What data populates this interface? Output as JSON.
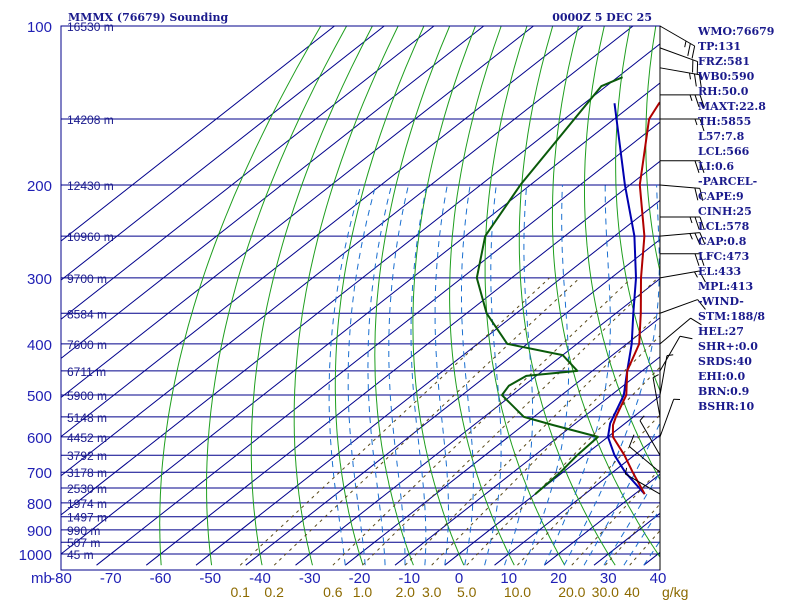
{
  "header": {
    "station_title": "MMMX (76679) Sounding",
    "time_label": "0000Z  5 DEC 25"
  },
  "indices": [
    "WMO:76679",
    "TP:131",
    "FRZ:581",
    "WB0:590",
    "RH:50.0",
    "MAXT:22.8",
    "TH:5855",
    "L57:7.8",
    "LCL:566",
    "LI:0.6",
    "-PARCEL-",
    "CAPE:9",
    "CINH:25",
    "LCL:578",
    "CAP:0.8",
    "LFC:473",
    "EL:433",
    "MPL:413",
    "-WIND-",
    "STM:188/8",
    "HEL:27",
    "SHR+:0.0",
    "SRDS:40",
    "EHI:0.0",
    "BRN:0.9",
    "BSHR:10"
  ],
  "colors": {
    "grid": "#00008b",
    "isotherm": "#00008b",
    "dry_adiabat": "#1e9e1e",
    "moist_adiabat": "#1a6fd0",
    "mixing_ratio": "#5a4a1a",
    "temperature": "#b00000",
    "dewpoint": "#0a5a0a",
    "parcel": "#0000b0",
    "axis_text": "#1f1fb4",
    "mixing_text": "#8c6a00",
    "wind": "#000000"
  },
  "chart_data": {
    "type": "skew-t",
    "pressure_axis_label": "mb",
    "pressure_ticks": [
      100,
      200,
      300,
      400,
      500,
      600,
      700,
      800,
      900,
      1000
    ],
    "pressure_range": [
      1050,
      100
    ],
    "temperature_ticks": [
      -80,
      -70,
      -60,
      -50,
      -40,
      -30,
      -20,
      -10,
      0,
      10,
      20,
      30,
      40
    ],
    "temperature_range": [
      -80,
      42
    ],
    "mixing_ratio_labels": [
      "0.1",
      "0.2",
      "0.6",
      "1.0",
      "2.0",
      "3.0",
      "5.0",
      "10.0",
      "20.0",
      "30.0",
      "40"
    ],
    "mixing_ratio_values": [
      0.1,
      0.2,
      0.6,
      1.0,
      2.0,
      3.0,
      5.0,
      10.0,
      20.0,
      30.0,
      40
    ],
    "mixing_ratio_unit": "g/kg",
    "height_labels": [
      {
        "p": 100,
        "label": "16530 m"
      },
      {
        "p": 150,
        "label": "14208 m"
      },
      {
        "p": 200,
        "label": "12430 m"
      },
      {
        "p": 250,
        "label": "10960 m"
      },
      {
        "p": 300,
        "label": "9700 m"
      },
      {
        "p": 350,
        "label": "8584 m"
      },
      {
        "p": 400,
        "label": "7600 m"
      },
      {
        "p": 450,
        "label": "6711 m"
      },
      {
        "p": 500,
        "label": "5900 m"
      },
      {
        "p": 550,
        "label": "5148 m"
      },
      {
        "p": 600,
        "label": "4452 m"
      },
      {
        "p": 650,
        "label": "3792 m"
      },
      {
        "p": 700,
        "label": "3178 m"
      },
      {
        "p": 750,
        "label": "2530 m"
      },
      {
        "p": 800,
        "label": "1974 m"
      },
      {
        "p": 850,
        "label": "1497 m"
      },
      {
        "p": 900,
        "label": "990 m"
      },
      {
        "p": 950,
        "label": "507 m"
      },
      {
        "p": 1000,
        "label": "45 m"
      }
    ],
    "temperature_profile": [
      {
        "p": 770,
        "t": 22.0
      },
      {
        "p": 700,
        "t": 14.0
      },
      {
        "p": 650,
        "t": 8.0
      },
      {
        "p": 600,
        "t": 1.0
      },
      {
        "p": 570,
        "t": -2.0
      },
      {
        "p": 550,
        "t": -3.5
      },
      {
        "p": 500,
        "t": -7.0
      },
      {
        "p": 450,
        "t": -13.0
      },
      {
        "p": 400,
        "t": -17.5
      },
      {
        "p": 350,
        "t": -25.0
      },
      {
        "p": 300,
        "t": -34.0
      },
      {
        "p": 250,
        "t": -44.0
      },
      {
        "p": 200,
        "t": -58.0
      },
      {
        "p": 150,
        "t": -73.0
      },
      {
        "p": 140,
        "t": -75.0
      },
      {
        "p": 120,
        "t": -75.0
      },
      {
        "p": 100,
        "t": -80.0
      }
    ],
    "dewpoint_profile": [
      {
        "p": 770,
        "td": 0.0
      },
      {
        "p": 700,
        "td": -0.5
      },
      {
        "p": 650,
        "td": -1.5
      },
      {
        "p": 600,
        "td": -2.0
      },
      {
        "p": 570,
        "td": -14.0
      },
      {
        "p": 550,
        "td": -22.0
      },
      {
        "p": 500,
        "td": -32.0
      },
      {
        "p": 480,
        "td": -33.0
      },
      {
        "p": 460,
        "td": -32.0
      },
      {
        "p": 450,
        "td": -23.0
      },
      {
        "p": 420,
        "td": -30.0
      },
      {
        "p": 400,
        "td": -44.0
      },
      {
        "p": 350,
        "td": -56.0
      },
      {
        "p": 300,
        "td": -67.0
      },
      {
        "p": 250,
        "td": -76.0
      },
      {
        "p": 200,
        "td": -82.0
      },
      {
        "p": 150,
        "td": -88.0
      },
      {
        "p": 130,
        "td": -91.0
      },
      {
        "p": 125,
        "td": -89.0
      }
    ],
    "parcel_profile": [
      {
        "p": 770,
        "t": 22.0
      },
      {
        "p": 700,
        "t": 12.5
      },
      {
        "p": 650,
        "t": 6.0
      },
      {
        "p": 600,
        "t": 0.0
      },
      {
        "p": 566,
        "t": -3.0
      },
      {
        "p": 500,
        "t": -7.5
      },
      {
        "p": 450,
        "t": -13.0
      },
      {
        "p": 400,
        "t": -19.0
      },
      {
        "p": 350,
        "t": -26.5
      },
      {
        "p": 300,
        "t": -35.0
      },
      {
        "p": 250,
        "t": -46.0
      },
      {
        "p": 200,
        "t": -61.0
      },
      {
        "p": 140,
        "t": -84.0
      }
    ],
    "wind_barbs": [
      {
        "p": 100,
        "dir": 300,
        "spd": 25
      },
      {
        "p": 110,
        "dir": 290,
        "spd": 20
      },
      {
        "p": 120,
        "dir": 280,
        "spd": 25
      },
      {
        "p": 135,
        "dir": 270,
        "spd": 25
      },
      {
        "p": 150,
        "dir": 270,
        "spd": 15
      },
      {
        "p": 180,
        "dir": 270,
        "spd": 20
      },
      {
        "p": 200,
        "dir": 275,
        "spd": 20
      },
      {
        "p": 230,
        "dir": 270,
        "spd": 25
      },
      {
        "p": 250,
        "dir": 265,
        "spd": 25
      },
      {
        "p": 270,
        "dir": 270,
        "spd": 20
      },
      {
        "p": 300,
        "dir": 260,
        "spd": 15
      },
      {
        "p": 350,
        "dir": 250,
        "spd": 10
      },
      {
        "p": 400,
        "dir": 230,
        "spd": 10
      },
      {
        "p": 450,
        "dir": 210,
        "spd": 10
      },
      {
        "p": 500,
        "dir": 190,
        "spd": 5
      },
      {
        "p": 550,
        "dir": 170,
        "spd": 5
      },
      {
        "p": 600,
        "dir": 200,
        "spd": 5
      },
      {
        "p": 650,
        "dir": 150,
        "spd": 5
      },
      {
        "p": 700,
        "dir": 130,
        "spd": 10
      },
      {
        "p": 770,
        "dir": 120,
        "spd": 5
      }
    ],
    "grid": true
  }
}
